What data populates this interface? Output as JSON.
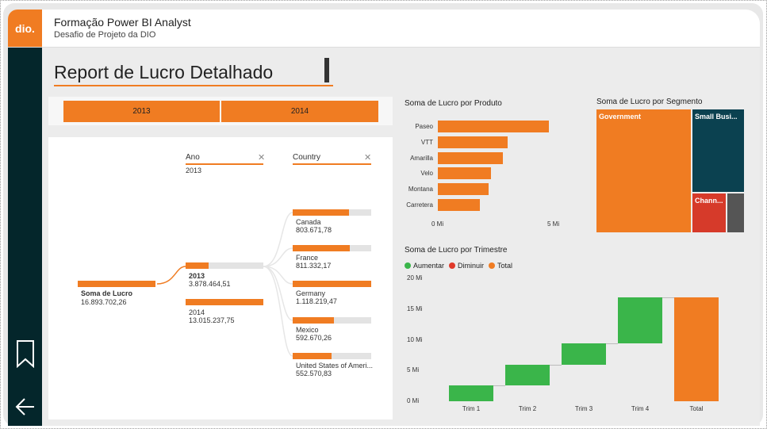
{
  "app": {
    "logo": "dio.",
    "title": "Formação Power BI Analyst",
    "subtitle": "Desafio de Projeto da DIO"
  },
  "report": {
    "title": "Report de Lucro Detalhado"
  },
  "slicer": {
    "options": [
      "2013",
      "2014"
    ]
  },
  "tree": {
    "root": {
      "label": "Soma de Lucro",
      "value": "16.893.702,26"
    },
    "levels": [
      {
        "header": "Ano",
        "filter": "2013"
      },
      {
        "header": "Country"
      }
    ],
    "years": [
      {
        "label": "2013",
        "value": "3.878.464,51",
        "share": 0.23
      },
      {
        "label": "2014",
        "value": "13.015.237,75",
        "share": 0.77
      }
    ],
    "countries": [
      {
        "label": "Canada",
        "value": "803.671,78",
        "share": 0.72
      },
      {
        "label": "France",
        "value": "811.332,17",
        "share": 0.73
      },
      {
        "label": "Germany",
        "value": "1.118.219,47",
        "share": 1.0
      },
      {
        "label": "Mexico",
        "value": "592.670,26",
        "share": 0.53
      },
      {
        "label": "United States of Ameri...",
        "value": "552.570,83",
        "share": 0.49
      }
    ]
  },
  "colors": {
    "orange": "#f07c22",
    "dark_teal": "#04262b",
    "green": "#3ab54a",
    "red": "#e03a2b"
  },
  "chart_data": [
    {
      "type": "bar",
      "title": "Soma de Lucro por Produto",
      "categories": [
        "Paseo",
        "VTT",
        "Amarilla",
        "Velo",
        "Montana",
        "Carretera"
      ],
      "values": [
        4.8,
        3.0,
        2.8,
        2.3,
        2.2,
        1.8
      ],
      "xticks": [
        "0 Mi",
        "5 Mi"
      ],
      "xlim": [
        0,
        5.5
      ]
    },
    {
      "type": "heatmap",
      "title": "Soma de Lucro por Segmento",
      "segments": [
        {
          "name": "Government",
          "value": 11.39,
          "color": "#f07c22"
        },
        {
          "name": "Small Busi...",
          "value": 4.14,
          "color": "#0b4150"
        },
        {
          "name": "Chann...",
          "value": 1.32,
          "color": "#d63a2a"
        },
        {
          "name": "",
          "value": 0.57,
          "color": "#555555"
        }
      ]
    },
    {
      "type": "bar",
      "title": "Soma de Lucro por Trimestre",
      "legend": [
        {
          "name": "Aumentar",
          "color": "#3ab54a"
        },
        {
          "name": "Diminuir",
          "color": "#e03a2b"
        },
        {
          "name": "Total",
          "color": "#f07c22"
        }
      ],
      "categories": [
        "Trim 1",
        "Trim 2",
        "Trim 3",
        "Trim 4",
        "Total"
      ],
      "values": [
        2.6,
        3.3,
        3.5,
        7.5,
        16.9
      ],
      "yticks": [
        "0 Mi",
        "5 Mi",
        "10 Mi",
        "15 Mi",
        "20 Mi"
      ],
      "ylim": [
        0,
        20
      ]
    }
  ]
}
